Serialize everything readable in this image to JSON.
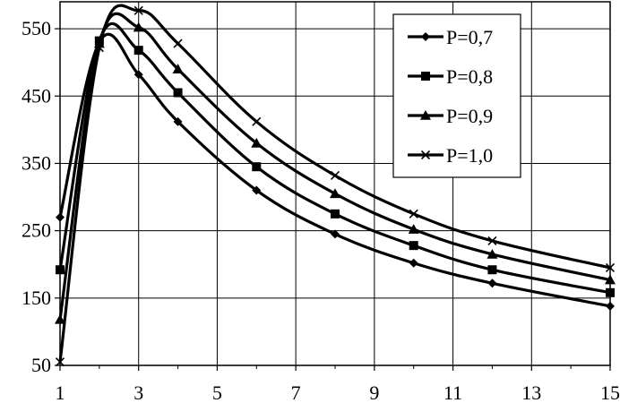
{
  "chart_data": {
    "type": "line",
    "title": "",
    "xlabel": "",
    "ylabel": "",
    "xlim": [
      1,
      15
    ],
    "ylim": [
      50,
      590
    ],
    "x_ticks": [
      1,
      3,
      5,
      7,
      9,
      11,
      13,
      15
    ],
    "y_ticks": [
      50,
      150,
      250,
      350,
      450,
      550
    ],
    "grid": true,
    "legend_position": "top-right",
    "series": [
      {
        "name": "P=0,7",
        "marker": "diamond",
        "x": [
          1,
          2,
          3,
          4,
          6,
          8,
          10,
          12,
          15
        ],
        "y": [
          270,
          530,
          482,
          412,
          310,
          245,
          202,
          172,
          138
        ]
      },
      {
        "name": "P=0,8",
        "marker": "square",
        "x": [
          1,
          2,
          3,
          4,
          6,
          8,
          10,
          12,
          15
        ],
        "y": [
          192,
          532,
          518,
          455,
          345,
          275,
          228,
          192,
          158
        ]
      },
      {
        "name": "P=0,9",
        "marker": "triangle",
        "x": [
          1,
          2,
          3,
          4,
          6,
          8,
          10,
          12,
          15
        ],
        "y": [
          118,
          528,
          552,
          490,
          380,
          305,
          252,
          215,
          177
        ]
      },
      {
        "name": "P=1,0",
        "marker": "x",
        "x": [
          1,
          2,
          3,
          4,
          6,
          8,
          10,
          12,
          15
        ],
        "y": [
          55,
          522,
          577,
          528,
          412,
          332,
          275,
          235,
          195
        ]
      }
    ]
  }
}
